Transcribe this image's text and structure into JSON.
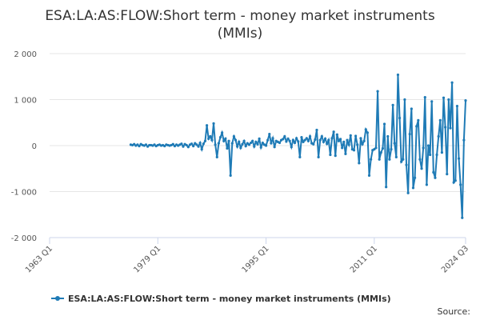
{
  "chart_data": {
    "type": "line",
    "title": [
      "ESA:LA:AS:FLOW:Short term - money market instruments",
      "(MMIs)"
    ],
    "xlim": [
      1963,
      2024.5
    ],
    "xticks": [
      {
        "value": 1963,
        "label": "1963 Q1"
      },
      {
        "value": 1979,
        "label": "1979 Q1"
      },
      {
        "value": 1995,
        "label": "1995 Q1"
      },
      {
        "value": 2011,
        "label": "2011 Q1"
      },
      {
        "value": 2024.5,
        "label": "2024 Q3"
      }
    ],
    "ylim": [
      -2000,
      2000
    ],
    "yticks": [
      {
        "value": -2000,
        "label": "-2 000"
      },
      {
        "value": -1000,
        "label": "-1 000"
      },
      0,
      {
        "value": 1000,
        "label": "1 000"
      },
      {
        "value": 2000,
        "label": "2 000"
      }
    ],
    "grid": true,
    "source": "Source:",
    "series": [
      {
        "name": "ESA:LA:AS:FLOW:Short term - money market instruments (MMIs)",
        "color": "#1f7bb6",
        "x": [
          1975,
          1975.25,
          1975.5,
          1975.75,
          1976,
          1976.25,
          1976.5,
          1976.75,
          1977,
          1977.25,
          1977.5,
          1977.75,
          1978,
          1978.25,
          1978.5,
          1978.75,
          1979,
          1979.25,
          1979.5,
          1979.75,
          1980,
          1980.25,
          1980.5,
          1980.75,
          1981,
          1981.25,
          1981.5,
          1981.75,
          1982,
          1982.25,
          1982.5,
          1982.75,
          1983,
          1983.25,
          1983.5,
          1983.75,
          1984,
          1984.25,
          1984.5,
          1984.75,
          1985,
          1985.25,
          1985.5,
          1985.75,
          1986,
          1986.25,
          1986.5,
          1986.75,
          1987,
          1987.25,
          1987.5,
          1987.75,
          1988,
          1988.25,
          1988.5,
          1988.75,
          1989,
          1989.25,
          1989.5,
          1989.75,
          1990,
          1990.25,
          1990.5,
          1990.75,
          1991,
          1991.25,
          1991.5,
          1991.75,
          1992,
          1992.25,
          1992.5,
          1992.75,
          1993,
          1993.25,
          1993.5,
          1993.75,
          1994,
          1994.25,
          1994.5,
          1994.75,
          1995,
          1995.25,
          1995.5,
          1995.75,
          1996,
          1996.25,
          1996.5,
          1996.75,
          1997,
          1997.25,
          1997.5,
          1997.75,
          1998,
          1998.25,
          1998.5,
          1998.75,
          1999,
          1999.25,
          1999.5,
          1999.75,
          2000,
          2000.25,
          2000.5,
          2000.75,
          2001,
          2001.25,
          2001.5,
          2001.75,
          2002,
          2002.25,
          2002.5,
          2002.75,
          2003,
          2003.25,
          2003.5,
          2003.75,
          2004,
          2004.25,
          2004.5,
          2004.75,
          2005,
          2005.25,
          2005.5,
          2005.75,
          2006,
          2006.25,
          2006.5,
          2006.75,
          2007,
          2007.25,
          2007.5,
          2007.75,
          2008,
          2008.25,
          2008.5,
          2008.75,
          2009,
          2009.25,
          2009.5,
          2009.75,
          2010,
          2010.25,
          2010.5,
          2010.75,
          2011,
          2011.25,
          2011.5,
          2011.75,
          2012,
          2012.25,
          2012.5,
          2012.75,
          2013,
          2013.25,
          2013.5,
          2013.75,
          2014,
          2014.25,
          2014.5,
          2014.75,
          2015,
          2015.25,
          2015.5,
          2015.75,
          2016,
          2016.25,
          2016.5,
          2016.75,
          2017,
          2017.25,
          2017.5,
          2017.75,
          2018,
          2018.25,
          2018.5,
          2018.75,
          2019,
          2019.25,
          2019.5,
          2019.75,
          2020,
          2020.25,
          2020.5,
          2020.75,
          2021,
          2021.25,
          2021.5,
          2021.75,
          2022,
          2022.25,
          2022.5,
          2022.75,
          2023,
          2023.25,
          2023.5,
          2023.75,
          2024,
          2024.25,
          2024.5
        ],
        "values": [
          20,
          10,
          30,
          0,
          20,
          -10,
          30,
          10,
          0,
          20,
          -20,
          10,
          10,
          0,
          20,
          -10,
          10,
          20,
          0,
          10,
          -10,
          20,
          10,
          0,
          10,
          30,
          -10,
          20,
          0,
          20,
          40,
          -20,
          30,
          10,
          -30,
          20,
          40,
          -10,
          50,
          20,
          -20,
          60,
          -80,
          40,
          100,
          440,
          150,
          200,
          120,
          480,
          20,
          -250,
          50,
          180,
          280,
          100,
          150,
          -60,
          100,
          -650,
          50,
          200,
          120,
          -20,
          80,
          -50,
          30,
          100,
          -10,
          50,
          20,
          60,
          100,
          -20,
          80,
          30,
          150,
          -40,
          60,
          20,
          0,
          120,
          250,
          50,
          160,
          -30,
          100,
          80,
          60,
          120,
          140,
          200,
          90,
          150,
          100,
          -30,
          120,
          60,
          160,
          90,
          -250,
          180,
          80,
          120,
          160,
          100,
          200,
          50,
          30,
          130,
          340,
          -250,
          120,
          200,
          80,
          150,
          40,
          120,
          -200,
          160,
          300,
          -220,
          240,
          100,
          140,
          -50,
          80,
          -180,
          120,
          20,
          220,
          -80,
          -100,
          210,
          20,
          -380,
          160,
          30,
          100,
          350,
          280,
          -650,
          -300,
          -100,
          -80,
          -50,
          1180,
          -300,
          -150,
          -60,
          470,
          -900,
          200,
          -300,
          -80,
          880,
          50,
          -250,
          1540,
          600,
          -350,
          -300,
          1000,
          -420,
          -1030,
          250,
          800,
          -920,
          -700,
          420,
          550,
          -300,
          -500,
          -50,
          1050,
          -850,
          0,
          -200,
          960,
          -580,
          -700,
          -200,
          200,
          550,
          -150,
          1040,
          400,
          -620,
          1000,
          380,
          1370,
          -800,
          -760,
          860,
          -280,
          -850,
          -1570,
          120,
          980
        ]
      }
    ]
  }
}
